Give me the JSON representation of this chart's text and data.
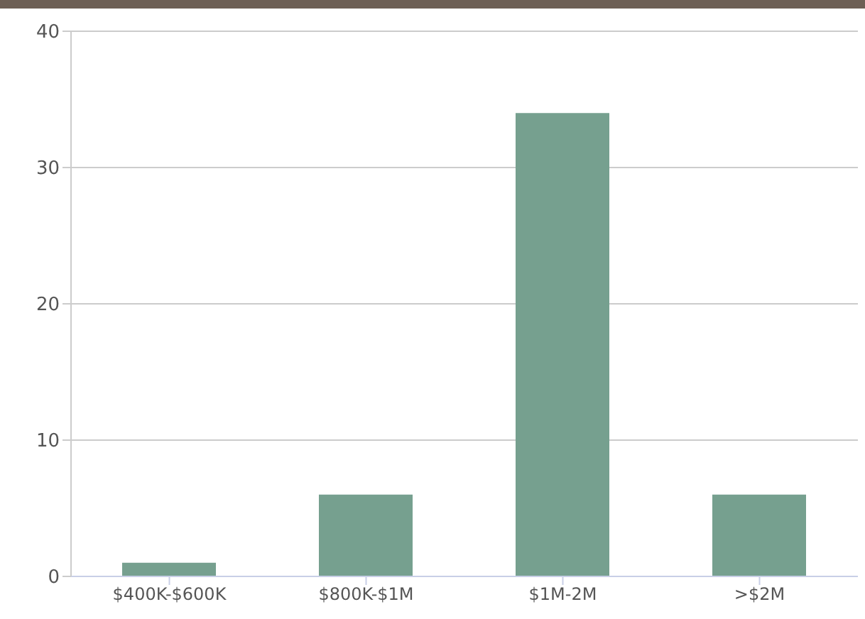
{
  "chart_data": {
    "type": "bar",
    "categories": [
      "$400K-$600K",
      "$800K-$1M",
      "$1M-2M",
      ">$2M"
    ],
    "values": [
      1,
      6,
      34,
      6
    ],
    "color": "#76a08f",
    "ylim": [
      0,
      40
    ],
    "yticks": [
      0,
      10,
      20,
      30,
      40
    ],
    "grid": "y"
  }
}
